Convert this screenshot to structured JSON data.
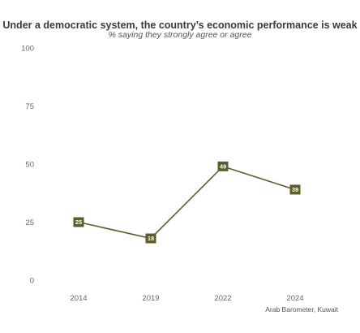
{
  "chart_data": {
    "type": "line",
    "title": "Under a democratic system, the country’s economic performance is weak",
    "subtitle": "% saying they strongly agree or agree",
    "categories": [
      "2014",
      "2019",
      "2022",
      "2024"
    ],
    "series": [
      {
        "values": [
          25,
          18,
          49,
          39
        ],
        "color": "#5e5b2c"
      }
    ],
    "yticks": [
      0,
      25,
      50,
      75,
      100
    ],
    "ylim": [
      0,
      100
    ],
    "grid": false,
    "source": "Arab Barometer, Kuwait"
  }
}
